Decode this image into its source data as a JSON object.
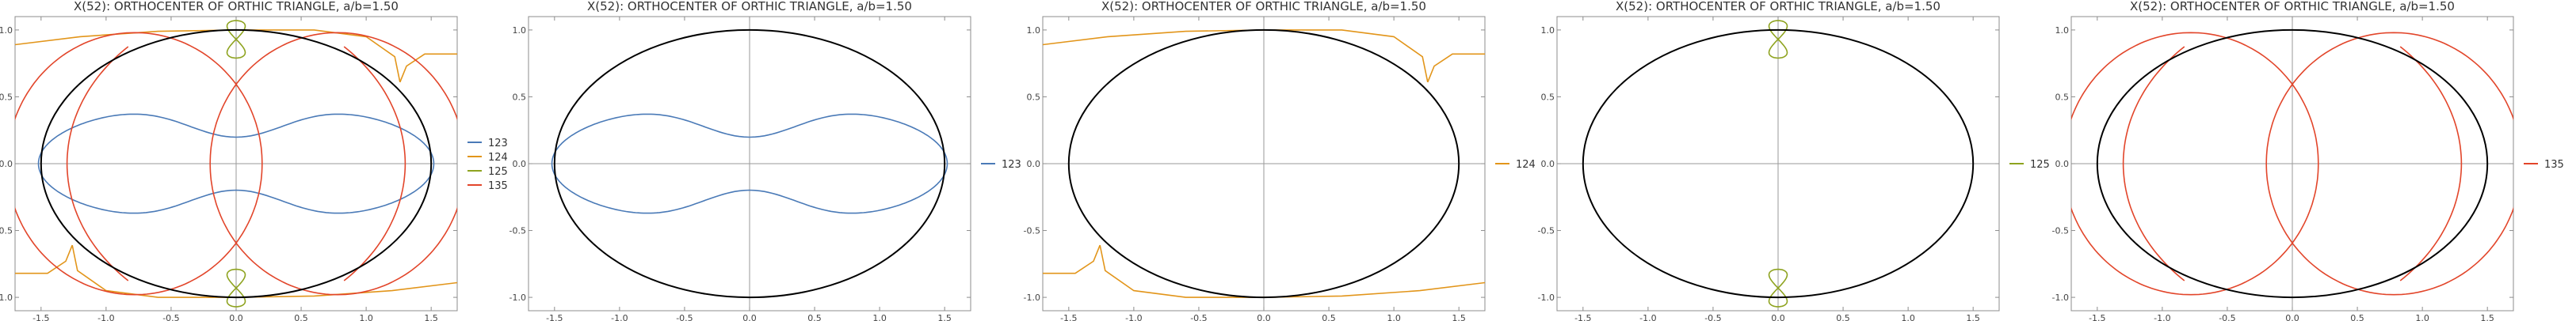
{
  "colors": {
    "ellipse": "#000000",
    "axis": "#9a9a9a",
    "frame": "#8c8c8c",
    "c123": "#4a7ab7",
    "c124": "#e2951a",
    "c125": "#8ea31f",
    "c135": "#e2452a"
  },
  "chart_data": [
    {
      "type": "line",
      "title": "X(52): ORTHOCENTER OF ORTHIC TRIANGLE, a/b=1.50",
      "xlim": [
        -1.7,
        1.7
      ],
      "ylim": [
        -1.1,
        1.1
      ],
      "x_ticks": [
        "-1.5",
        "-1.0",
        "-0.5",
        "0.0",
        "0.5",
        "1.0",
        "1.5"
      ],
      "y_ticks": [
        "-1.0",
        "-0.5",
        "0.0",
        "0.5",
        "1.0"
      ],
      "ellipse": {
        "a": 1.5,
        "b": 1.0
      },
      "series": [
        {
          "name": "123",
          "color": "#4a7ab7"
        },
        {
          "name": "124",
          "color": "#e2951a"
        },
        {
          "name": "125",
          "color": "#8ea31f"
        },
        {
          "name": "135",
          "color": "#e2452a"
        }
      ]
    },
    {
      "type": "line",
      "title": "X(52): ORTHOCENTER OF ORTHIC TRIANGLE, a/b=1.50",
      "xlim": [
        -1.7,
        1.7
      ],
      "ylim": [
        -1.1,
        1.1
      ],
      "x_ticks": [
        "-1.5",
        "-1.0",
        "-0.5",
        "0.0",
        "0.5",
        "1.0",
        "1.5"
      ],
      "y_ticks": [
        "-1.0",
        "-0.5",
        "0.0",
        "0.5",
        "1.0"
      ],
      "ellipse": {
        "a": 1.5,
        "b": 1.0
      },
      "series": [
        {
          "name": "123",
          "color": "#4a7ab7"
        }
      ]
    },
    {
      "type": "line",
      "title": "X(52): ORTHOCENTER OF ORTHIC TRIANGLE, a/b=1.50",
      "xlim": [
        -1.7,
        1.7
      ],
      "ylim": [
        -1.1,
        1.1
      ],
      "x_ticks": [
        "-1.5",
        "-1.0",
        "-0.5",
        "0.0",
        "0.5",
        "1.0",
        "1.5"
      ],
      "y_ticks": [
        "-1.0",
        "-0.5",
        "0.0",
        "0.5",
        "1.0"
      ],
      "ellipse": {
        "a": 1.5,
        "b": 1.0
      },
      "series": [
        {
          "name": "124",
          "color": "#e2951a"
        }
      ]
    },
    {
      "type": "line",
      "title": "X(52): ORTHOCENTER OF ORTHIC TRIANGLE, a/b=1.50",
      "xlim": [
        -1.7,
        1.7
      ],
      "ylim": [
        -1.1,
        1.1
      ],
      "x_ticks": [
        "-1.5",
        "-1.0",
        "-0.5",
        "0.0",
        "0.5",
        "1.0",
        "1.5"
      ],
      "y_ticks": [
        "-1.0",
        "-0.5",
        "0.0",
        "0.5",
        "1.0"
      ],
      "ellipse": {
        "a": 1.5,
        "b": 1.0
      },
      "series": [
        {
          "name": "125",
          "color": "#8ea31f"
        }
      ]
    },
    {
      "type": "line",
      "title": "X(52): ORTHOCENTER OF ORTHIC TRIANGLE, a/b=1.50",
      "xlim": [
        -1.7,
        1.7
      ],
      "ylim": [
        -1.1,
        1.1
      ],
      "x_ticks": [
        "-1.5",
        "-1.0",
        "-0.5",
        "0.0",
        "0.5",
        "1.0",
        "1.5"
      ],
      "y_ticks": [
        "-1.0",
        "-0.5",
        "0.0",
        "0.5",
        "1.0"
      ],
      "ellipse": {
        "a": 1.5,
        "b": 1.0
      },
      "series": [
        {
          "name": "135",
          "color": "#e2452a"
        }
      ]
    }
  ]
}
